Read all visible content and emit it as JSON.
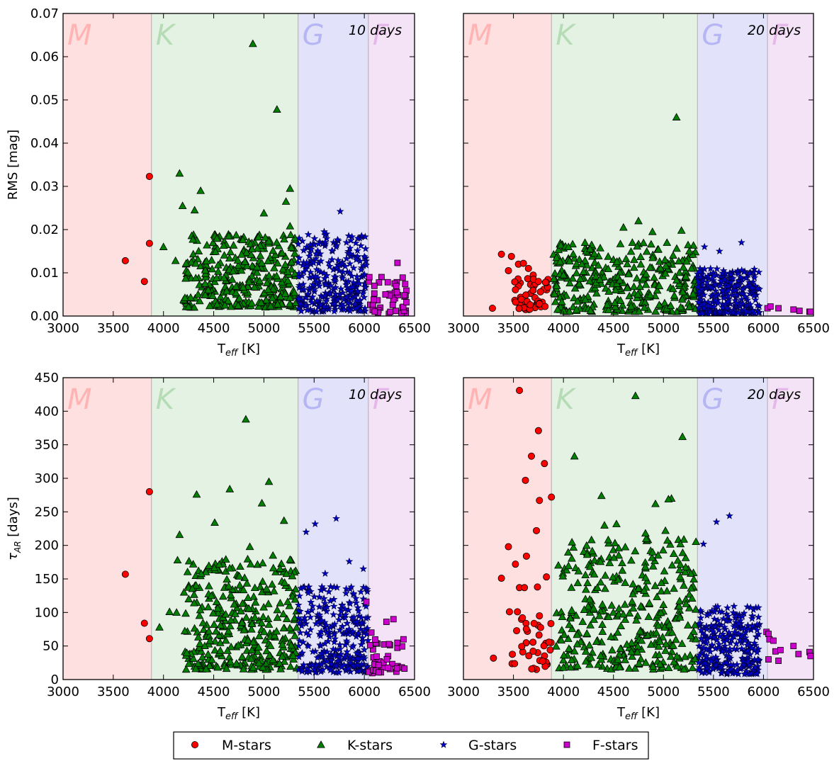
{
  "legend": [
    {
      "name": "M-stars",
      "marker": "circle",
      "color": "#ff0000"
    },
    {
      "name": "K-stars",
      "marker": "triangle",
      "color": "#008000"
    },
    {
      "name": "G-stars",
      "marker": "star",
      "color": "#0000cc"
    },
    {
      "name": "F-stars",
      "marker": "square",
      "color": "#cc00cc"
    }
  ],
  "class_bands": [
    {
      "letter": "M",
      "from": 3000,
      "to": 3880,
      "fill": "#ffe0e0",
      "text": "#ffb3b3"
    },
    {
      "letter": "K",
      "from": 3880,
      "to": 5340,
      "fill": "#e4f2e4",
      "text": "#b5dcb5"
    },
    {
      "letter": "G",
      "from": 5340,
      "to": 6040,
      "fill": "#e2e2fb",
      "text": "#b6b6f5"
    },
    {
      "letter": "F",
      "from": 6040,
      "to": 6500,
      "fill": "#f4e2f6",
      "text": "#e6b8ea"
    }
  ],
  "chart_data": [
    {
      "type": "scatter",
      "panel": "top-left",
      "annotation": "10 days",
      "xlabel_main": "T",
      "xlabel_sub": "eff",
      "xlabel_unit": " [K]",
      "ylabel": "RMS [mag]",
      "ylabel_symbol": "",
      "ylabel_sub": "",
      "xlim": [
        3000,
        6500
      ],
      "ylim": [
        0,
        0.07
      ],
      "xticks": [
        3000,
        3500,
        4000,
        4500,
        5000,
        5500,
        6000,
        6500
      ],
      "yticks": [
        0.0,
        0.01,
        0.02,
        0.03,
        0.04,
        0.05,
        0.06,
        0.07
      ],
      "ytick_decimals": 2,
      "show_ytick_labels": true,
      "series": [
        {
          "name": "M-stars",
          "points": [
            [
              3620,
              0.0128
            ],
            [
              3810,
              0.008
            ],
            [
              3860,
              0.0168
            ],
            [
              3860,
              0.0323
            ]
          ]
        },
        {
          "name": "K-stars",
          "points": [
            [
              4160,
              0.033
            ],
            [
              4190,
              0.0255
            ],
            [
              4370,
              0.029
            ],
            [
              4890,
              0.063
            ],
            [
              5130,
              0.0478
            ],
            [
              4310,
              0.0245
            ],
            [
              5000,
              0.0238
            ],
            [
              5220,
              0.0265
            ],
            [
              5260,
              0.0295
            ],
            [
              5260,
              0.0208
            ],
            [
              4650,
              0.0185
            ],
            [
              4000,
              0.016
            ],
            [
              4120,
              0.0128
            ]
          ],
          "cloud": {
            "count": 330,
            "x": [
              4200,
              5320
            ],
            "y": [
              0.002,
              0.019
            ],
            "seed": 11
          }
        },
        {
          "name": "G-stars",
          "points": [
            [
              5760,
              0.0242
            ],
            [
              5600,
              0.0195
            ]
          ],
          "cloud": {
            "count": 300,
            "x": [
              5340,
              6020
            ],
            "y": [
              0.001,
              0.019
            ],
            "seed": 12
          }
        },
        {
          "name": "F-stars",
          "points": [
            [
              6330,
              0.0123
            ],
            [
              6400,
              0.0048
            ],
            [
              6210,
              0.005
            ],
            [
              6050,
              0.009
            ],
            [
              6100,
              0.007
            ]
          ],
          "cloud": {
            "count": 40,
            "x": [
              6040,
              6420
            ],
            "y": [
              0.0005,
              0.0095
            ],
            "seed": 13
          }
        }
      ]
    },
    {
      "type": "scatter",
      "panel": "top-right",
      "annotation": "20 days",
      "xlabel_main": "T",
      "xlabel_sub": "eff",
      "xlabel_unit": " [K]",
      "ylabel": "",
      "ylabel_symbol": "",
      "ylabel_sub": "",
      "xlim": [
        3000,
        6500
      ],
      "ylim": [
        0,
        0.07
      ],
      "xticks": [
        3000,
        3500,
        4000,
        4500,
        5000,
        5500,
        6000,
        6500
      ],
      "yticks": [
        0.0,
        0.01,
        0.02,
        0.03,
        0.04,
        0.05,
        0.06,
        0.07
      ],
      "ytick_decimals": 2,
      "show_ytick_labels": false,
      "series": [
        {
          "name": "M-stars",
          "points": [
            [
              3290,
              0.0018
            ],
            [
              3380,
              0.0143
            ],
            [
              3450,
              0.0105
            ],
            [
              3480,
              0.0138
            ],
            [
              3550,
              0.012
            ],
            [
              3600,
              0.0122
            ],
            [
              3650,
              0.011
            ],
            [
              3700,
              0.0085
            ],
            [
              3750,
              0.008
            ],
            [
              3820,
              0.0078
            ]
          ],
          "cloud": {
            "count": 45,
            "x": [
              3500,
              3860
            ],
            "y": [
              0.0015,
              0.01
            ],
            "seed": 21
          }
        },
        {
          "name": "K-stars",
          "points": [
            [
              5130,
              0.046
            ],
            [
              4750,
              0.022
            ],
            [
              4600,
              0.0205
            ],
            [
              5180,
              0.0198
            ],
            [
              4890,
              0.0195
            ],
            [
              4050,
              0.016
            ],
            [
              4000,
              0.0095
            ]
          ],
          "cloud": {
            "count": 330,
            "x": [
              3900,
              5330
            ],
            "y": [
              0.001,
              0.017
            ],
            "seed": 22
          }
        },
        {
          "name": "G-stars",
          "points": [
            [
              5780,
              0.017
            ],
            [
              5560,
              0.015
            ],
            [
              5410,
              0.016
            ]
          ],
          "cloud": {
            "count": 280,
            "x": [
              5340,
              5960
            ],
            "y": [
              0.0005,
              0.011
            ],
            "seed": 23
          }
        },
        {
          "name": "F-stars",
          "points": [
            [
              6040,
              0.0018
            ],
            [
              6070,
              0.0022
            ],
            [
              6150,
              0.0018
            ],
            [
              6300,
              0.0015
            ],
            [
              6360,
              0.0012
            ],
            [
              6460,
              0.001
            ],
            [
              6470,
              0.001
            ]
          ]
        }
      ]
    },
    {
      "type": "scatter",
      "panel": "bottom-left",
      "annotation": "10 days",
      "xlabel_main": "T",
      "xlabel_sub": "eff",
      "xlabel_unit": " [K]",
      "ylabel": " [days]",
      "ylabel_symbol": "τ",
      "ylabel_sub": "AR",
      "xlim": [
        3000,
        6500
      ],
      "ylim": [
        0,
        450
      ],
      "xticks": [
        3000,
        3500,
        4000,
        4500,
        5000,
        5500,
        6000,
        6500
      ],
      "yticks": [
        0,
        50,
        100,
        150,
        200,
        250,
        300,
        350,
        400,
        450
      ],
      "ytick_decimals": 0,
      "show_ytick_labels": true,
      "series": [
        {
          "name": "M-stars",
          "points": [
            [
              3620,
              157
            ],
            [
              3810,
              84
            ],
            [
              3860,
              61
            ],
            [
              3860,
              280
            ]
          ]
        },
        {
          "name": "K-stars",
          "points": [
            [
              4820,
              388
            ],
            [
              5050,
              295
            ],
            [
              4330,
              276
            ],
            [
              4660,
              284
            ],
            [
              4980,
              263
            ],
            [
              4510,
              234
            ],
            [
              5200,
              237
            ],
            [
              4160,
              216
            ],
            [
              4860,
              198
            ],
            [
              5090,
              185
            ],
            [
              4060,
              101
            ],
            [
              4130,
              100
            ],
            [
              3960,
              78
            ],
            [
              4140,
              178
            ]
          ],
          "cloud": {
            "count": 340,
            "x": [
              4200,
              5330
            ],
            "y": [
              15,
              180
            ],
            "seed": 31
          }
        },
        {
          "name": "G-stars",
          "points": [
            [
              5720,
              240
            ],
            [
              5510,
              232
            ],
            [
              5420,
              220
            ],
            [
              5850,
              176
            ],
            [
              5610,
              158
            ],
            [
              5990,
              165
            ]
          ],
          "cloud": {
            "count": 300,
            "x": [
              5340,
              6040
            ],
            "y": [
              10,
              140
            ],
            "seed": 32
          }
        },
        {
          "name": "F-stars",
          "points": [
            [
              6020,
              116
            ],
            [
              6290,
              90
            ],
            [
              6220,
              86
            ],
            [
              6390,
              60
            ],
            [
              6070,
              70
            ]
          ],
          "cloud": {
            "count": 38,
            "x": [
              6040,
              6420
            ],
            "y": [
              8,
              60
            ],
            "seed": 33
          }
        }
      ]
    },
    {
      "type": "scatter",
      "panel": "bottom-right",
      "annotation": "20 days",
      "xlabel_main": "T",
      "xlabel_sub": "eff",
      "xlabel_unit": " [K]",
      "ylabel": "",
      "ylabel_symbol": "",
      "ylabel_sub": "",
      "xlim": [
        3000,
        6500
      ],
      "ylim": [
        0,
        450
      ],
      "xticks": [
        3000,
        3500,
        4000,
        4500,
        5000,
        5500,
        6000,
        6500
      ],
      "yticks": [
        0,
        50,
        100,
        150,
        200,
        250,
        300,
        350,
        400,
        450
      ],
      "ytick_decimals": 0,
      "show_ytick_labels": false,
      "series": [
        {
          "name": "M-stars",
          "points": [
            [
              3560,
              431
            ],
            [
              3750,
              371
            ],
            [
              3680,
              333
            ],
            [
              3810,
              322
            ],
            [
              3880,
              272
            ],
            [
              3760,
              267
            ],
            [
              3620,
              297
            ],
            [
              3450,
              198
            ],
            [
              3730,
              222
            ],
            [
              3520,
              172
            ],
            [
              3380,
              151
            ],
            [
              3560,
              137
            ],
            [
              3610,
              137
            ],
            [
              3830,
              153
            ],
            [
              3630,
              184
            ],
            [
              3740,
              138
            ],
            [
              3300,
              32
            ],
            [
              3460,
              101
            ],
            [
              3540,
              101
            ],
            [
              3590,
              92
            ],
            [
              3760,
              95
            ]
          ],
          "cloud": {
            "count": 35,
            "x": [
              3480,
              3880
            ],
            "y": [
              15,
              90
            ],
            "seed": 41
          }
        },
        {
          "name": "K-stars",
          "points": [
            [
              4720,
              423
            ],
            [
              5190,
              362
            ],
            [
              4110,
              333
            ],
            [
              4380,
              274
            ],
            [
              5080,
              270
            ],
            [
              5050,
              269
            ],
            [
              4920,
              262
            ],
            [
              4410,
              230
            ],
            [
              4530,
              232
            ],
            [
              5020,
              222
            ],
            [
              4820,
              218
            ]
          ],
          "cloud": {
            "count": 340,
            "x": [
              3900,
              5330
            ],
            "y": [
              15,
              210
            ],
            "seed": 42
          }
        },
        {
          "name": "G-stars",
          "points": [
            [
              5660,
              244
            ],
            [
              5530,
              235
            ],
            [
              5400,
              202
            ]
          ],
          "cloud": {
            "count": 280,
            "x": [
              5340,
              5960
            ],
            "y": [
              8,
              110
            ],
            "seed": 43
          }
        },
        {
          "name": "F-stars",
          "points": [
            [
              6030,
              71
            ],
            [
              6050,
              68
            ],
            [
              6060,
              60
            ],
            [
              6100,
              58
            ],
            [
              6120,
              42
            ],
            [
              6170,
              44
            ],
            [
              6300,
              50
            ],
            [
              6350,
              38
            ],
            [
              6460,
              41
            ],
            [
              6470,
              35
            ],
            [
              6050,
              30
            ],
            [
              6150,
              28
            ]
          ]
        }
      ]
    }
  ]
}
